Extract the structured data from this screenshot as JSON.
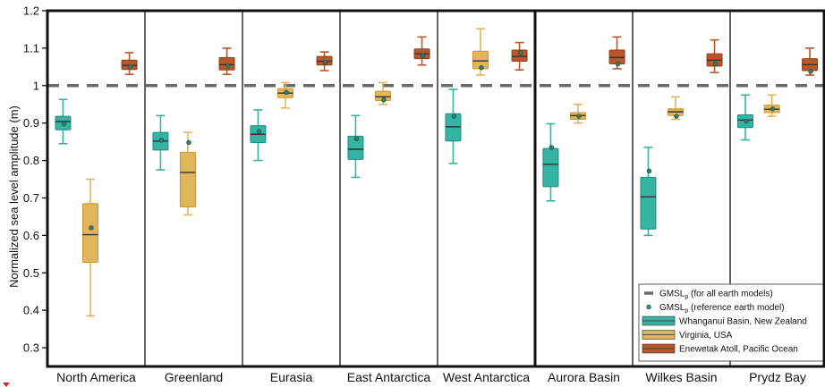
{
  "chart_data": {
    "type": "box",
    "title": "",
    "ylabel": "Normalized sea level amplitude (m)",
    "ylim": [
      0.25,
      1.2
    ],
    "yticks": [
      "0.3",
      "0.4",
      "0.5",
      "0.6",
      "0.7",
      "0.8",
      "0.9",
      "1",
      "1.1",
      "1.2"
    ],
    "categories": [
      "North America",
      "Greenland",
      "Eurasia",
      "East Antarctica",
      "West Antarctica",
      "Aurora Basin",
      "Wilkes Basin",
      "Prydz Bay"
    ],
    "reference_line": {
      "y": 1.0,
      "style": "dashed",
      "color": "#6b6b6b"
    },
    "series": [
      {
        "name": "Whanganui Basin, New Zealand",
        "color": "#35b3a3",
        "boxes": [
          {
            "min": 0.845,
            "q1": 0.882,
            "median": 0.904,
            "q3": 0.918,
            "max": 0.963,
            "ref": 0.898
          },
          {
            "min": 0.775,
            "q1": 0.828,
            "median": 0.852,
            "q3": 0.875,
            "max": 0.92,
            "ref": 0.854
          },
          {
            "min": 0.8,
            "q1": 0.848,
            "median": 0.87,
            "q3": 0.893,
            "max": 0.935,
            "ref": 0.878
          },
          {
            "min": 0.755,
            "q1": 0.803,
            "median": 0.83,
            "q3": 0.865,
            "max": 0.92,
            "ref": 0.858
          },
          {
            "min": 0.792,
            "q1": 0.852,
            "median": 0.89,
            "q3": 0.925,
            "max": 0.99,
            "ref": 0.918
          },
          {
            "min": 0.692,
            "q1": 0.73,
            "median": 0.79,
            "q3": 0.832,
            "max": 0.898,
            "ref": 0.835
          },
          {
            "min": 0.6,
            "q1": 0.617,
            "median": 0.703,
            "q3": 0.755,
            "max": 0.835,
            "ref": 0.772
          },
          {
            "min": 0.855,
            "q1": 0.888,
            "median": 0.908,
            "q3": 0.922,
            "max": 0.975,
            "ref": 0.905
          }
        ]
      },
      {
        "name": "Virginia, USA",
        "color": "#e3b55a",
        "boxes": [
          {
            "min": 0.385,
            "q1": 0.528,
            "median": 0.602,
            "q3": 0.685,
            "max": 0.75,
            "ref": 0.62
          },
          {
            "min": 0.655,
            "q1": 0.676,
            "median": 0.768,
            "q3": 0.822,
            "max": 0.875,
            "ref": 0.848
          },
          {
            "min": 0.94,
            "q1": 0.968,
            "median": 0.98,
            "q3": 0.992,
            "max": 1.008,
            "ref": 0.982
          },
          {
            "min": 0.95,
            "q1": 0.96,
            "median": 0.97,
            "q3": 0.985,
            "max": 1.008,
            "ref": 0.962
          },
          {
            "min": 1.028,
            "q1": 1.045,
            "median": 1.066,
            "q3": 1.092,
            "max": 1.152,
            "ref": 1.048
          },
          {
            "min": 0.9,
            "q1": 0.91,
            "median": 0.92,
            "q3": 0.928,
            "max": 0.95,
            "ref": 0.918
          },
          {
            "min": 0.91,
            "q1": 0.92,
            "median": 0.93,
            "q3": 0.938,
            "max": 0.97,
            "ref": 0.918
          },
          {
            "min": 0.918,
            "q1": 0.928,
            "median": 0.937,
            "q3": 0.948,
            "max": 0.975,
            "ref": 0.938
          }
        ]
      },
      {
        "name": "Enewetak Atoll, Pacific Ocean",
        "color": "#b8572a",
        "boxes": [
          {
            "min": 1.03,
            "q1": 1.043,
            "median": 1.054,
            "q3": 1.068,
            "max": 1.088,
            "ref": 1.05
          },
          {
            "min": 1.03,
            "q1": 1.042,
            "median": 1.056,
            "q3": 1.075,
            "max": 1.1,
            "ref": 1.052
          },
          {
            "min": 1.04,
            "q1": 1.055,
            "median": 1.065,
            "q3": 1.078,
            "max": 1.09,
            "ref": 1.062
          },
          {
            "min": 1.055,
            "q1": 1.072,
            "median": 1.085,
            "q3": 1.098,
            "max": 1.13,
            "ref": 1.08
          },
          {
            "min": 1.042,
            "q1": 1.065,
            "median": 1.078,
            "q3": 1.095,
            "max": 1.115,
            "ref": 1.088
          },
          {
            "min": 1.045,
            "q1": 1.058,
            "median": 1.075,
            "q3": 1.095,
            "max": 1.13,
            "ref": 1.058
          },
          {
            "min": 1.035,
            "q1": 1.052,
            "median": 1.068,
            "q3": 1.085,
            "max": 1.122,
            "ref": 1.058
          },
          {
            "min": 1.028,
            "q1": 1.04,
            "median": 1.056,
            "q3": 1.072,
            "max": 1.1,
            "ref": 1.038
          }
        ]
      }
    ],
    "legend": {
      "placement": "bottom-right",
      "items": [
        {
          "kind": "dash",
          "main": "GMSL",
          "sub": "p",
          "rest": " (for all earth models)",
          "color": "#6b6b6b"
        },
        {
          "kind": "dot",
          "main": "GMSL",
          "sub": "p",
          "rest": " (reference  earth model)",
          "color": "#2f9b83"
        },
        {
          "kind": "box",
          "label": "Whanganui Basin, New Zealand",
          "color": "#35b3a3"
        },
        {
          "kind": "box",
          "label": "Virginia, USA",
          "color": "#e3b55a"
        },
        {
          "kind": "box",
          "label": "Enewetak Atoll, Pacific Ocean",
          "color": "#b8572a"
        }
      ]
    },
    "grid": false
  }
}
